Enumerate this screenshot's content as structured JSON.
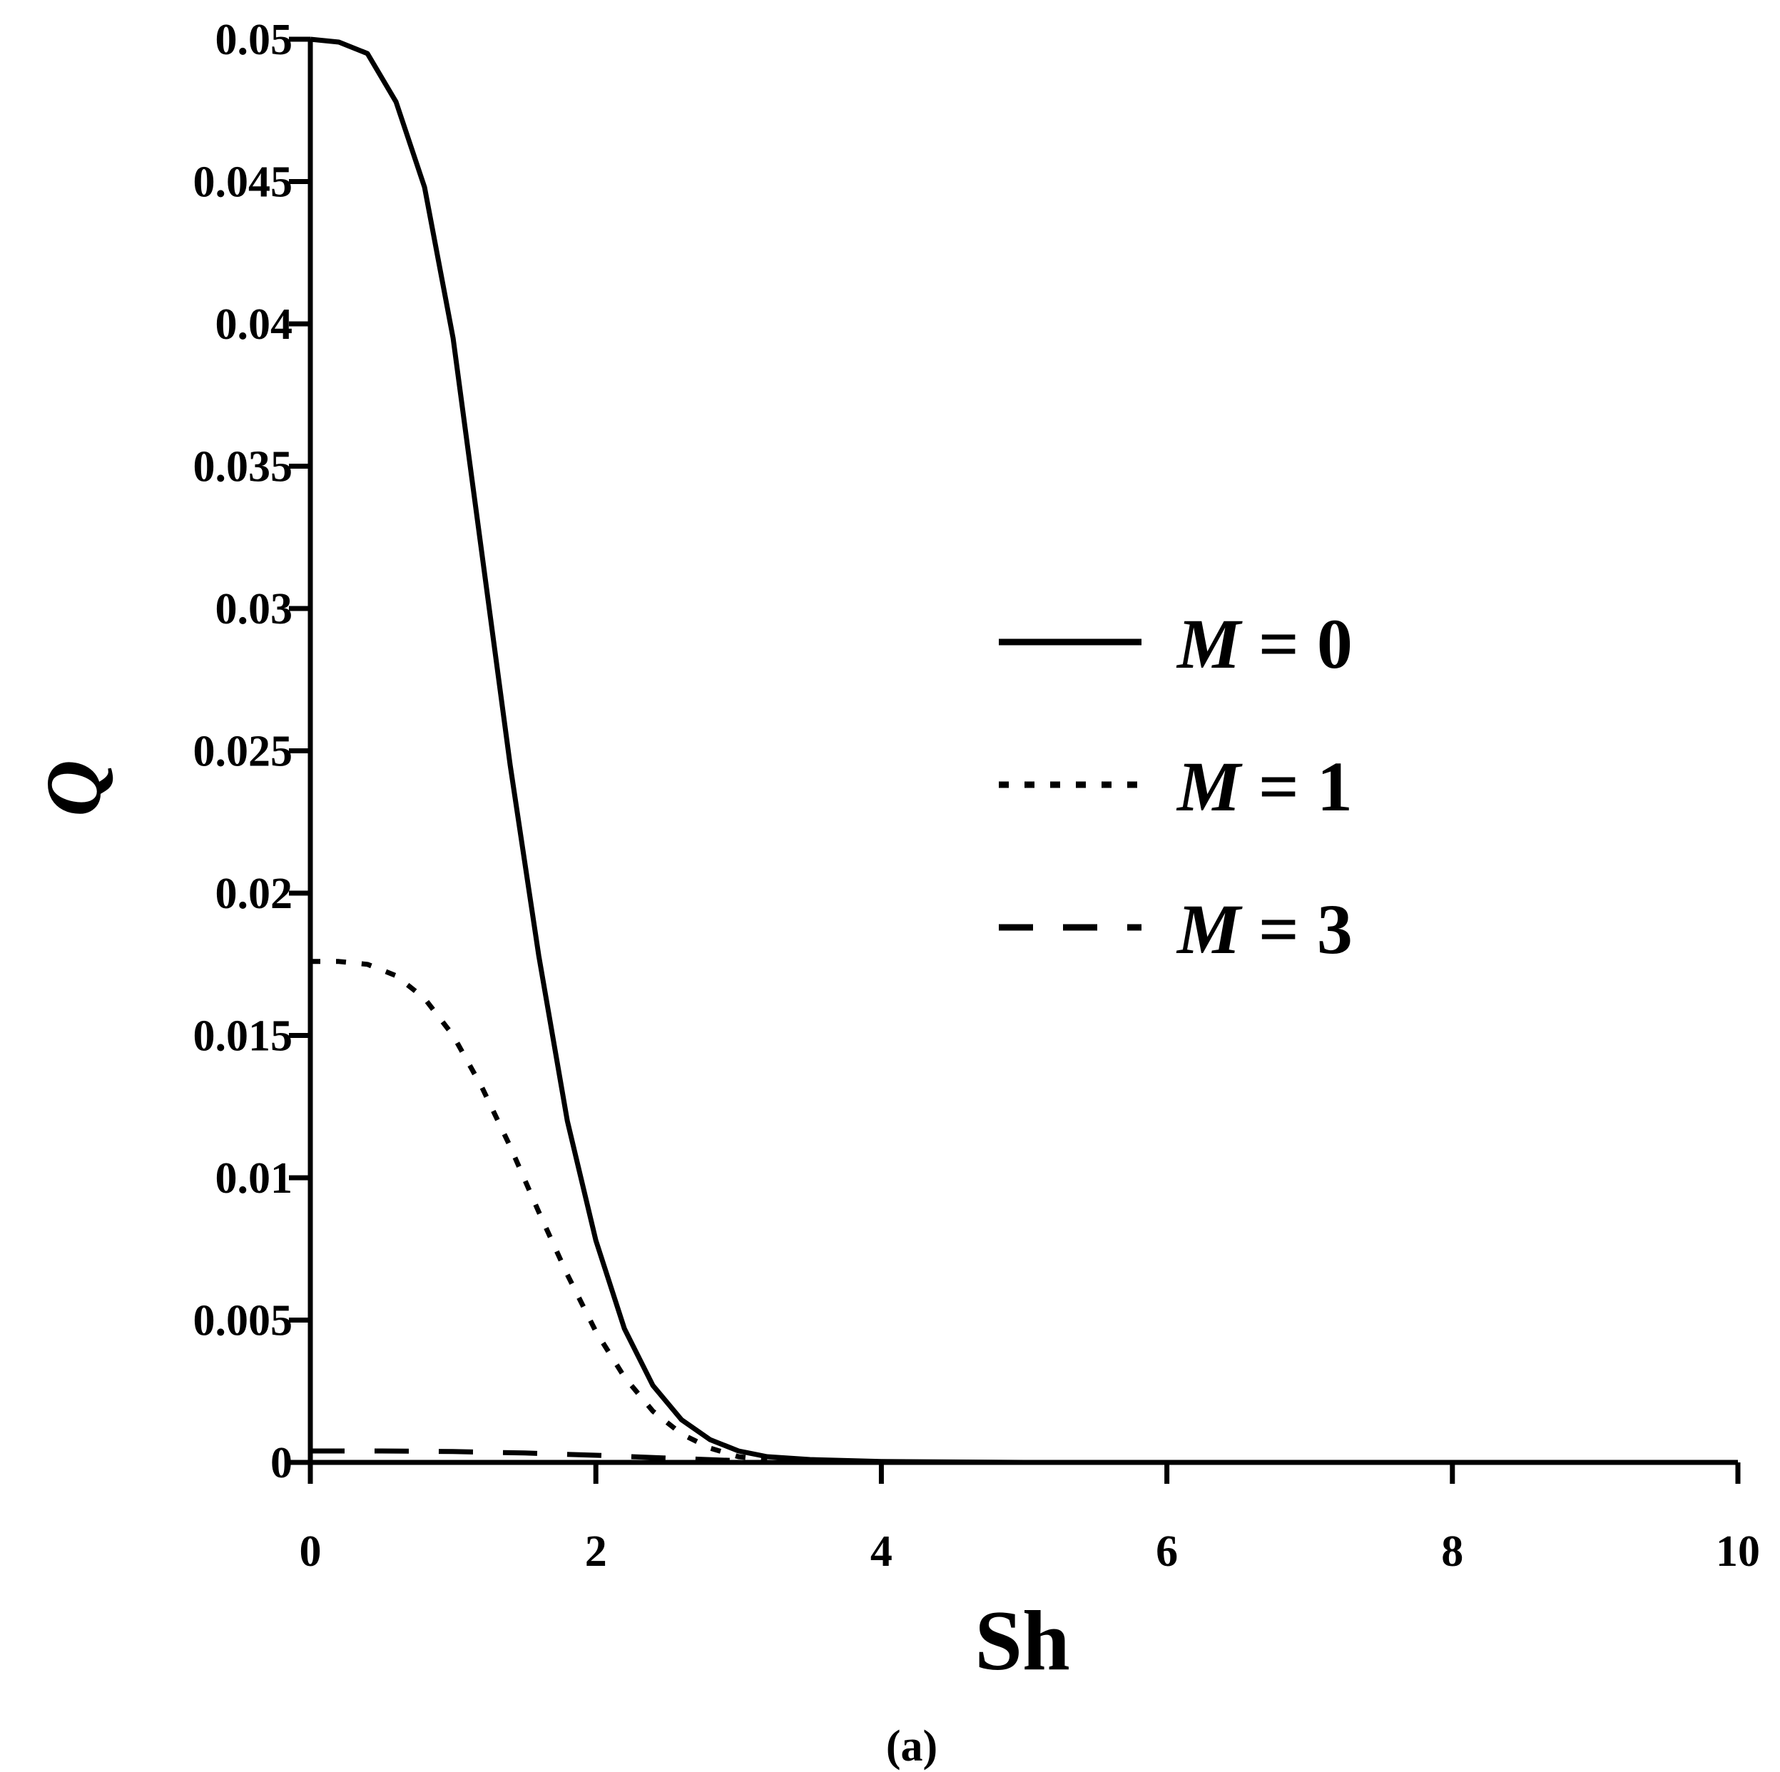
{
  "chart_data": {
    "type": "line",
    "xlabel": "Sh",
    "ylabel": "Q",
    "caption": "(a)",
    "xlim": [
      0,
      10
    ],
    "ylim": [
      0,
      0.05
    ],
    "xticks": [
      "0",
      "2",
      "4",
      "6",
      "8",
      "10"
    ],
    "yticks": [
      "0",
      "0.005",
      "0.01",
      "0.015",
      "0.02",
      "0.025",
      "0.03",
      "0.035",
      "0.04",
      "0.045",
      "0.05"
    ],
    "grid": false,
    "legend_position": "right-middle",
    "series": [
      {
        "name": "M = 0",
        "legend_var": "M",
        "legend_rest": " = 0",
        "style": "solid",
        "x": [
          0,
          0.2,
          0.4,
          0.6,
          0.8,
          1.0,
          1.2,
          1.4,
          1.6,
          1.8,
          2.0,
          2.2,
          2.4,
          2.6,
          2.8,
          3.0,
          3.2,
          3.5,
          4.0,
          5.0,
          6.0,
          8.0,
          10.0
        ],
        "y": [
          0.05,
          0.0499,
          0.0495,
          0.0478,
          0.0448,
          0.0395,
          0.032,
          0.0245,
          0.0178,
          0.012,
          0.0078,
          0.0047,
          0.0027,
          0.0015,
          0.0008,
          0.0004,
          0.0002,
          0.0001,
          3e-05,
          0.0,
          0.0,
          0.0,
          0.0
        ]
      },
      {
        "name": "M = 1",
        "legend_var": "M",
        "legend_rest": " = 1",
        "style": "dotted",
        "x": [
          0,
          0.2,
          0.4,
          0.6,
          0.8,
          1.0,
          1.2,
          1.4,
          1.6,
          1.8,
          2.0,
          2.2,
          2.4,
          2.6,
          2.8,
          3.0,
          3.2
        ],
        "y": [
          0.0176,
          0.0176,
          0.0175,
          0.0171,
          0.0163,
          0.015,
          0.0132,
          0.0111,
          0.0088,
          0.0066,
          0.0046,
          0.003,
          0.0018,
          0.001,
          0.0005,
          0.0002,
          0.0001
        ]
      },
      {
        "name": "M = 3",
        "legend_var": "M",
        "legend_rest": " = 3",
        "style": "dashed",
        "x": [
          0,
          0.5,
          1.0,
          1.5,
          2.0,
          2.5,
          3.0
        ],
        "y": [
          0.0004,
          0.0004,
          0.00038,
          0.00033,
          0.00025,
          0.00015,
          6e-05
        ]
      }
    ]
  }
}
